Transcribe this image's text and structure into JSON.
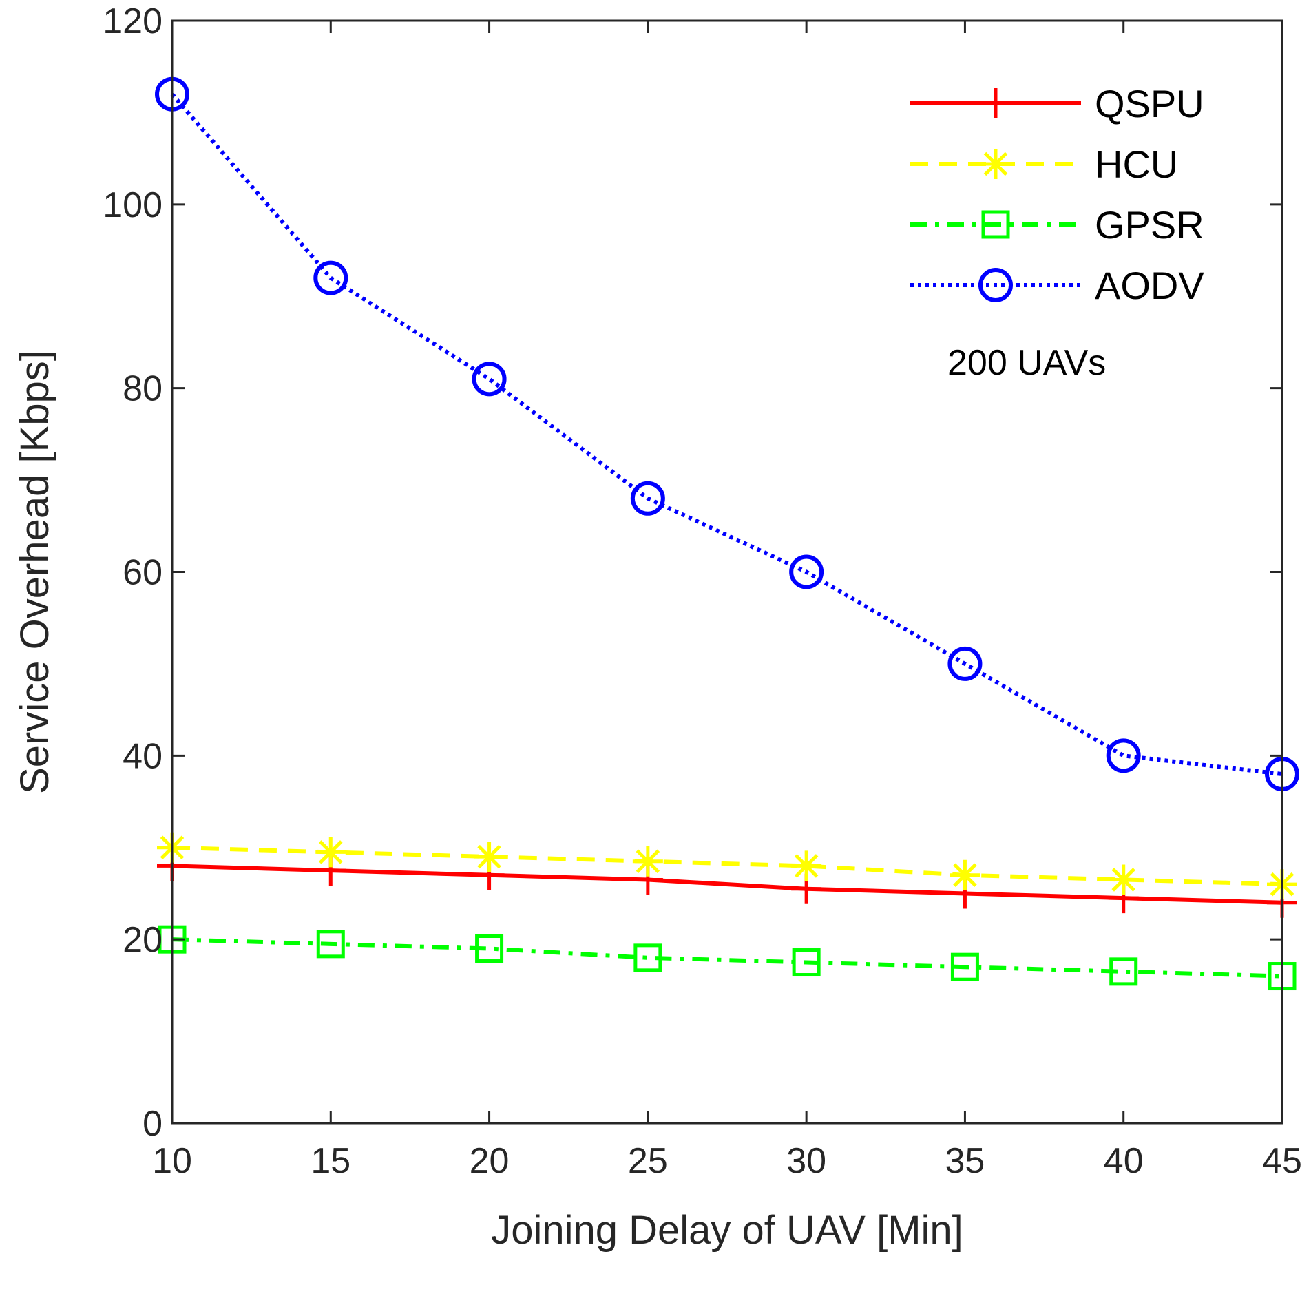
{
  "chart_data": {
    "type": "line",
    "title": "",
    "xlabel": "Joining Delay of UAV [Min]",
    "ylabel": "Service Overhead [Kbps]",
    "x": [
      10,
      15,
      20,
      25,
      30,
      35,
      40,
      45
    ],
    "xlim": [
      10,
      45
    ],
    "ylim": [
      0,
      120
    ],
    "xticks": [
      "10",
      "15",
      "20",
      "25",
      "30",
      "35",
      "40",
      "45"
    ],
    "yticks": [
      "0",
      "20",
      "40",
      "60",
      "80",
      "100",
      "120"
    ],
    "grid": false,
    "legend_position": "top-right",
    "annotation": "200 UAVs",
    "series": [
      {
        "name": "QSPU",
        "values": [
          28,
          27.5,
          27,
          26.5,
          25.5,
          25,
          24.5,
          24
        ],
        "color": "#ff0000",
        "marker": "plus",
        "dash": "solid"
      },
      {
        "name": "HCU",
        "values": [
          30,
          29.5,
          29,
          28.5,
          28,
          27,
          26.5,
          26
        ],
        "color": "#ffff00",
        "marker": "asterisk",
        "dash": "dashed"
      },
      {
        "name": "GPSR",
        "values": [
          20,
          19.5,
          19,
          18,
          17.5,
          17,
          16.5,
          16
        ],
        "color": "#00ff00",
        "marker": "square",
        "dash": "dashdot"
      },
      {
        "name": "AODV",
        "values": [
          112,
          92,
          81,
          68,
          60,
          50,
          40,
          38
        ],
        "color": "#0000ff",
        "marker": "circle",
        "dash": "dotted"
      }
    ]
  }
}
